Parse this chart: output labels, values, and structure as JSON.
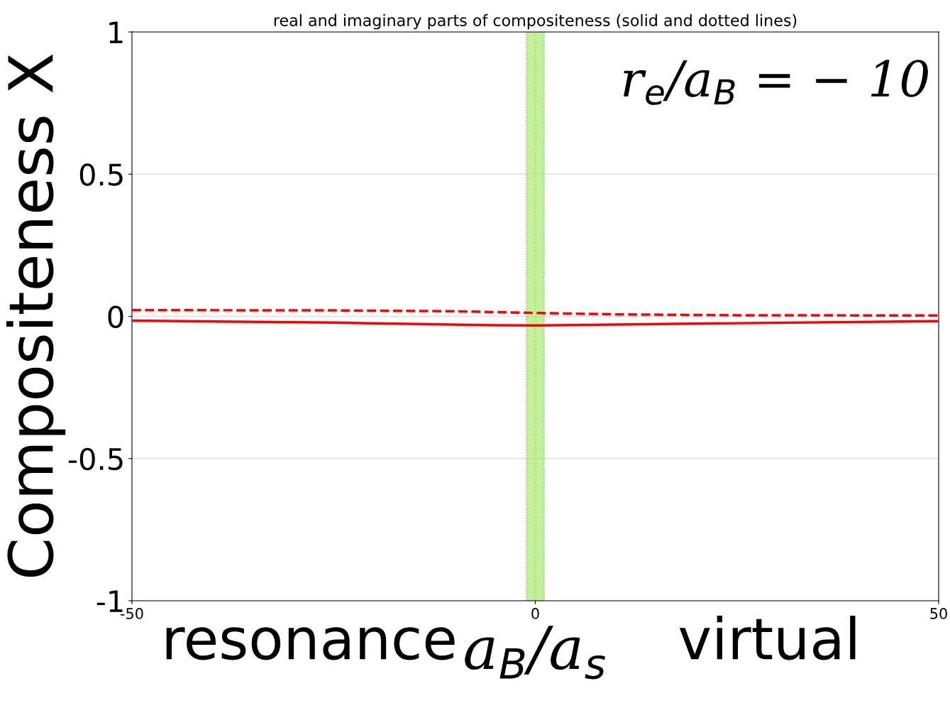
{
  "chart_data": {
    "type": "line",
    "title": "real and imaginary parts of compositeness (solid and dotted lines)",
    "xlabel": "a$_{B}$/a$_{s}$",
    "ylabel": "Compositeness X",
    "xlim": [
      -50,
      50
    ],
    "xticks": [
      -50,
      0,
      50
    ],
    "ylim": [
      -1,
      1
    ],
    "yticks": [
      1,
      0.5,
      0,
      -0.5,
      -1
    ],
    "grid": "y",
    "series": [
      {
        "color": "#ff0000",
        "line_style": "solid",
        "x": [
          -50,
          -25,
          -5,
          0,
          25,
          50
        ],
        "values": [
          -0.015,
          -0.022,
          -0.031,
          -0.032,
          -0.024,
          -0.017
        ]
      },
      {
        "color": "#ff0000",
        "line_style": "dashed",
        "x": [
          -50,
          -25,
          -10,
          0,
          10,
          25,
          50
        ],
        "values": [
          0.022,
          0.021,
          0.018,
          0.012,
          0.007,
          0.004,
          0.003
        ]
      }
    ],
    "bands": [
      {
        "axis": "x",
        "from": -1.1,
        "to": 1.1,
        "color": "#9be85a"
      }
    ],
    "ref_lines": [
      {
        "axis": "x",
        "value": 0,
        "color": "#d8c860",
        "line_style": "dotted"
      }
    ],
    "annotations": [
      "r$_{e}$/a$_{B}$ = − 10",
      "resonance",
      "virtual"
    ]
  }
}
